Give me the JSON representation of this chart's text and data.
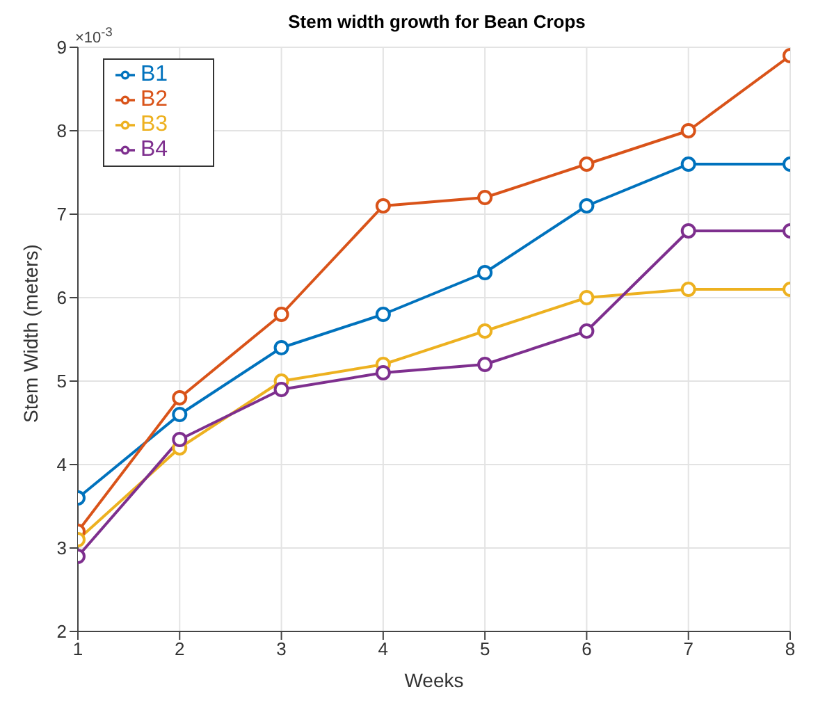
{
  "chart_data": {
    "type": "line",
    "title": "Stem width growth for Bean Crops",
    "xlabel": "Weeks",
    "ylabel": "Stem Width (meters)",
    "annotations": [
      "×10$^{-3}$"
    ],
    "x": [
      1,
      2,
      3,
      4,
      5,
      6,
      7,
      8
    ],
    "series": [
      {
        "name": "B1",
        "color": "#0072bd",
        "values": [
          3.6,
          4.6,
          5.4,
          5.8,
          6.3,
          7.1,
          7.6,
          7.6
        ]
      },
      {
        "name": "B2",
        "color": "#d95319",
        "values": [
          3.2,
          4.8,
          5.8,
          7.1,
          7.2,
          7.6,
          8.0,
          8.9
        ]
      },
      {
        "name": "B3",
        "color": "#edb120",
        "values": [
          3.1,
          4.2,
          5.0,
          5.2,
          5.6,
          6.0,
          6.1,
          6.1
        ]
      },
      {
        "name": "B4",
        "color": "#7e2f8e",
        "values": [
          2.9,
          4.3,
          4.9,
          5.1,
          5.2,
          5.6,
          6.8,
          6.8
        ]
      }
    ],
    "xlim": [
      1,
      8
    ],
    "xticks": [
      1,
      2,
      3,
      4,
      5,
      6,
      7,
      8
    ],
    "ylim": [
      2,
      9
    ],
    "yticks": [
      2,
      3,
      4,
      5,
      6,
      7,
      8,
      9
    ],
    "grid": true,
    "legend": "top left",
    "marker": "circle",
    "line_style": "solid"
  }
}
